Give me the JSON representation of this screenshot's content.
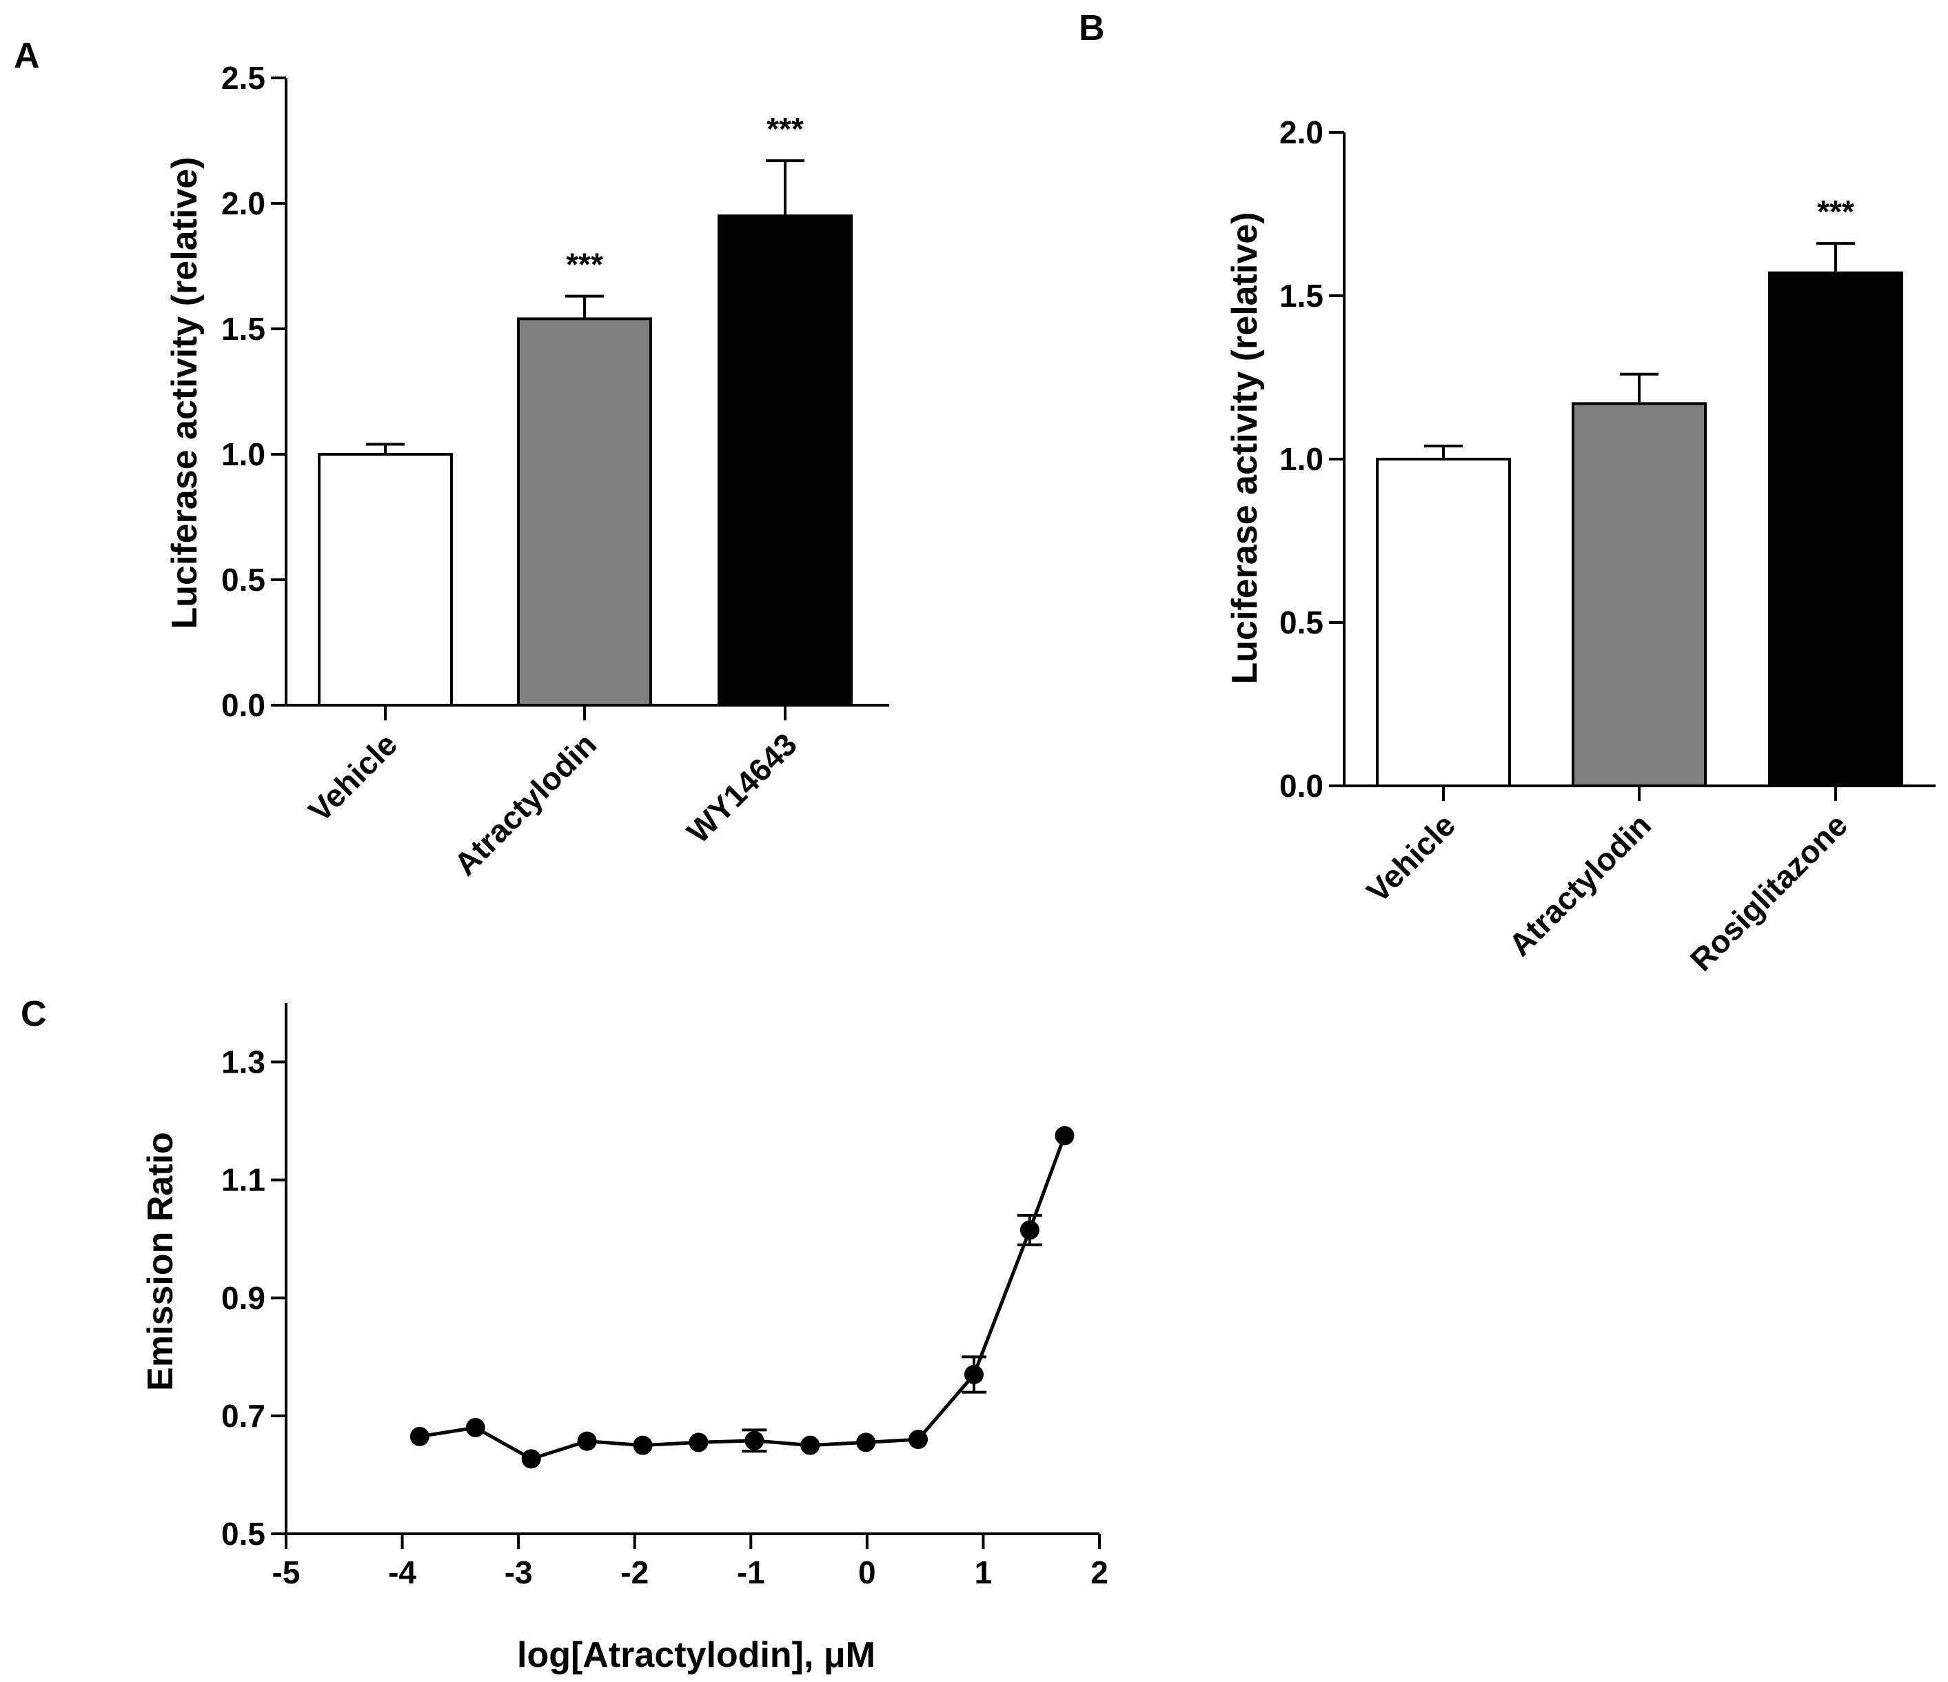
{
  "chart_data": [
    {
      "panel": "A",
      "type": "bar",
      "ylabel": "Luciferase activity  (relative)",
      "categories": [
        "Vehicle",
        "Atractylodin",
        "WY14643"
      ],
      "values": [
        1.0,
        1.54,
        1.95
      ],
      "errors": [
        0.04,
        0.09,
        0.22
      ],
      "significance": [
        "",
        "***",
        "***"
      ],
      "colors": [
        "#ffffff",
        "#808080",
        "#000000"
      ],
      "ylim": [
        0,
        2.5
      ],
      "yticks": [
        "0.0",
        "0.5",
        "1.0",
        "1.5",
        "2.0",
        "2.5"
      ]
    },
    {
      "panel": "B",
      "type": "bar",
      "ylabel": "Luciferase activity  (relative)",
      "categories": [
        "Vehicle",
        "Atractylodin",
        "Rosiglitazone"
      ],
      "values": [
        1.0,
        1.17,
        1.57
      ],
      "errors": [
        0.04,
        0.09,
        0.09
      ],
      "significance": [
        "",
        "",
        "***"
      ],
      "colors": [
        "#ffffff",
        "#808080",
        "#000000"
      ],
      "ylim": [
        0,
        2.0
      ],
      "yticks": [
        "0.0",
        "0.5",
        "1.0",
        "1.5",
        "2.0"
      ]
    },
    {
      "panel": "C",
      "type": "line",
      "xlabel": "log[Atractylodin], μM",
      "ylabel": "Emission  Ratio",
      "x": [
        -3.85,
        -3.37,
        -2.89,
        -2.41,
        -1.93,
        -1.45,
        -0.97,
        -0.49,
        -0.01,
        0.44,
        0.92,
        1.4,
        1.7
      ],
      "y": [
        0.665,
        0.68,
        0.627,
        0.657,
        0.65,
        0.655,
        0.658,
        0.65,
        0.655,
        0.66,
        0.77,
        1.015,
        1.175
      ],
      "errors": [
        0,
        0,
        0,
        0,
        0,
        0,
        0.018,
        0,
        0,
        0,
        0.03,
        0.025,
        0
      ],
      "xlim": [
        -5,
        2
      ],
      "ylim": [
        0.5,
        1.4
      ],
      "xticks": [
        "-5",
        "-4",
        "-3",
        "-2",
        "-1",
        "0",
        "1",
        "2"
      ],
      "yticks": [
        "0.5",
        "0.7",
        "0.9",
        "1.1",
        "1.3"
      ]
    }
  ]
}
